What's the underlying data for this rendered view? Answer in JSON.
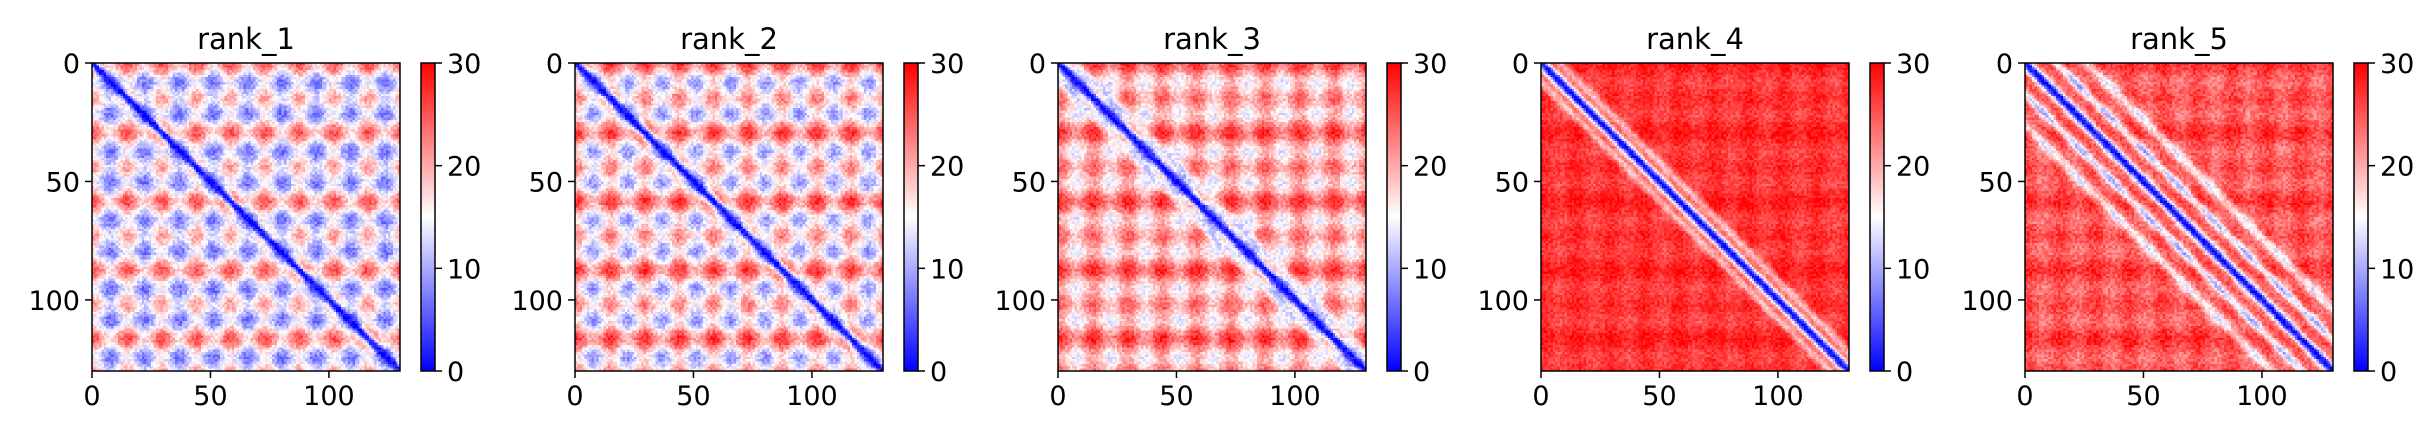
{
  "colors": {
    "low": "#0000ff",
    "mid": "#ffffff",
    "high": "#ff0000",
    "axis": "#000000"
  },
  "chart_data": [
    {
      "type": "heatmap",
      "title": "rank_1",
      "size": 130,
      "ticks": [
        0,
        50,
        100
      ],
      "colorbar": {
        "min": 0,
        "max": 30,
        "ticks": [
          0,
          10,
          20,
          30
        ]
      },
      "pattern": {
        "base": 15,
        "diag_width": 2.5,
        "checker_amp": 9,
        "checker_period": 29,
        "side_bands": [],
        "noise": 2.5
      }
    },
    {
      "type": "heatmap",
      "title": "rank_2",
      "size": 130,
      "ticks": [
        0,
        50,
        100
      ],
      "colorbar": {
        "min": 0,
        "max": 30,
        "ticks": [
          0,
          10,
          20,
          30
        ]
      },
      "pattern": {
        "base": 17,
        "diag_width": 2.8,
        "checker_amp": 9,
        "checker_period": 29,
        "side_bands": [],
        "noise": 2.5
      }
    },
    {
      "type": "heatmap",
      "title": "rank_3",
      "size": 130,
      "ticks": [
        0,
        50,
        100
      ],
      "colorbar": {
        "min": 0,
        "max": 30,
        "ticks": [
          0,
          10,
          20,
          30
        ]
      },
      "pattern": {
        "base": 20,
        "diag_width": 3.2,
        "checker_amp": 7,
        "checker_period": 29,
        "side_bands": [
          {
            "offset": 7,
            "width": 3,
            "depth": 6
          }
        ],
        "noise": 2.5
      }
    },
    {
      "type": "heatmap",
      "title": "rank_4",
      "size": 130,
      "ticks": [
        0,
        50,
        100
      ],
      "colorbar": {
        "min": 0,
        "max": 30,
        "ticks": [
          0,
          10,
          20,
          30
        ]
      },
      "pattern": {
        "base": 27,
        "diag_width": 3.2,
        "checker_amp": 2,
        "checker_period": 29,
        "side_bands": [
          {
            "offset": 8,
            "width": 2.5,
            "depth": 8
          }
        ],
        "noise": 2
      }
    },
    {
      "type": "heatmap",
      "title": "rank_5",
      "size": 130,
      "ticks": [
        0,
        50,
        100
      ],
      "colorbar": {
        "min": 0,
        "max": 30,
        "ticks": [
          0,
          10,
          20,
          30
        ]
      },
      "pattern": {
        "base": 25,
        "diag_width": 3.2,
        "checker_amp": 3,
        "checker_period": 29,
        "side_bands": [
          {
            "offset": 13,
            "width": 2.5,
            "depth": 13
          },
          {
            "offset": 26,
            "width": 3,
            "depth": 10
          }
        ],
        "noise": 2.5
      }
    }
  ]
}
